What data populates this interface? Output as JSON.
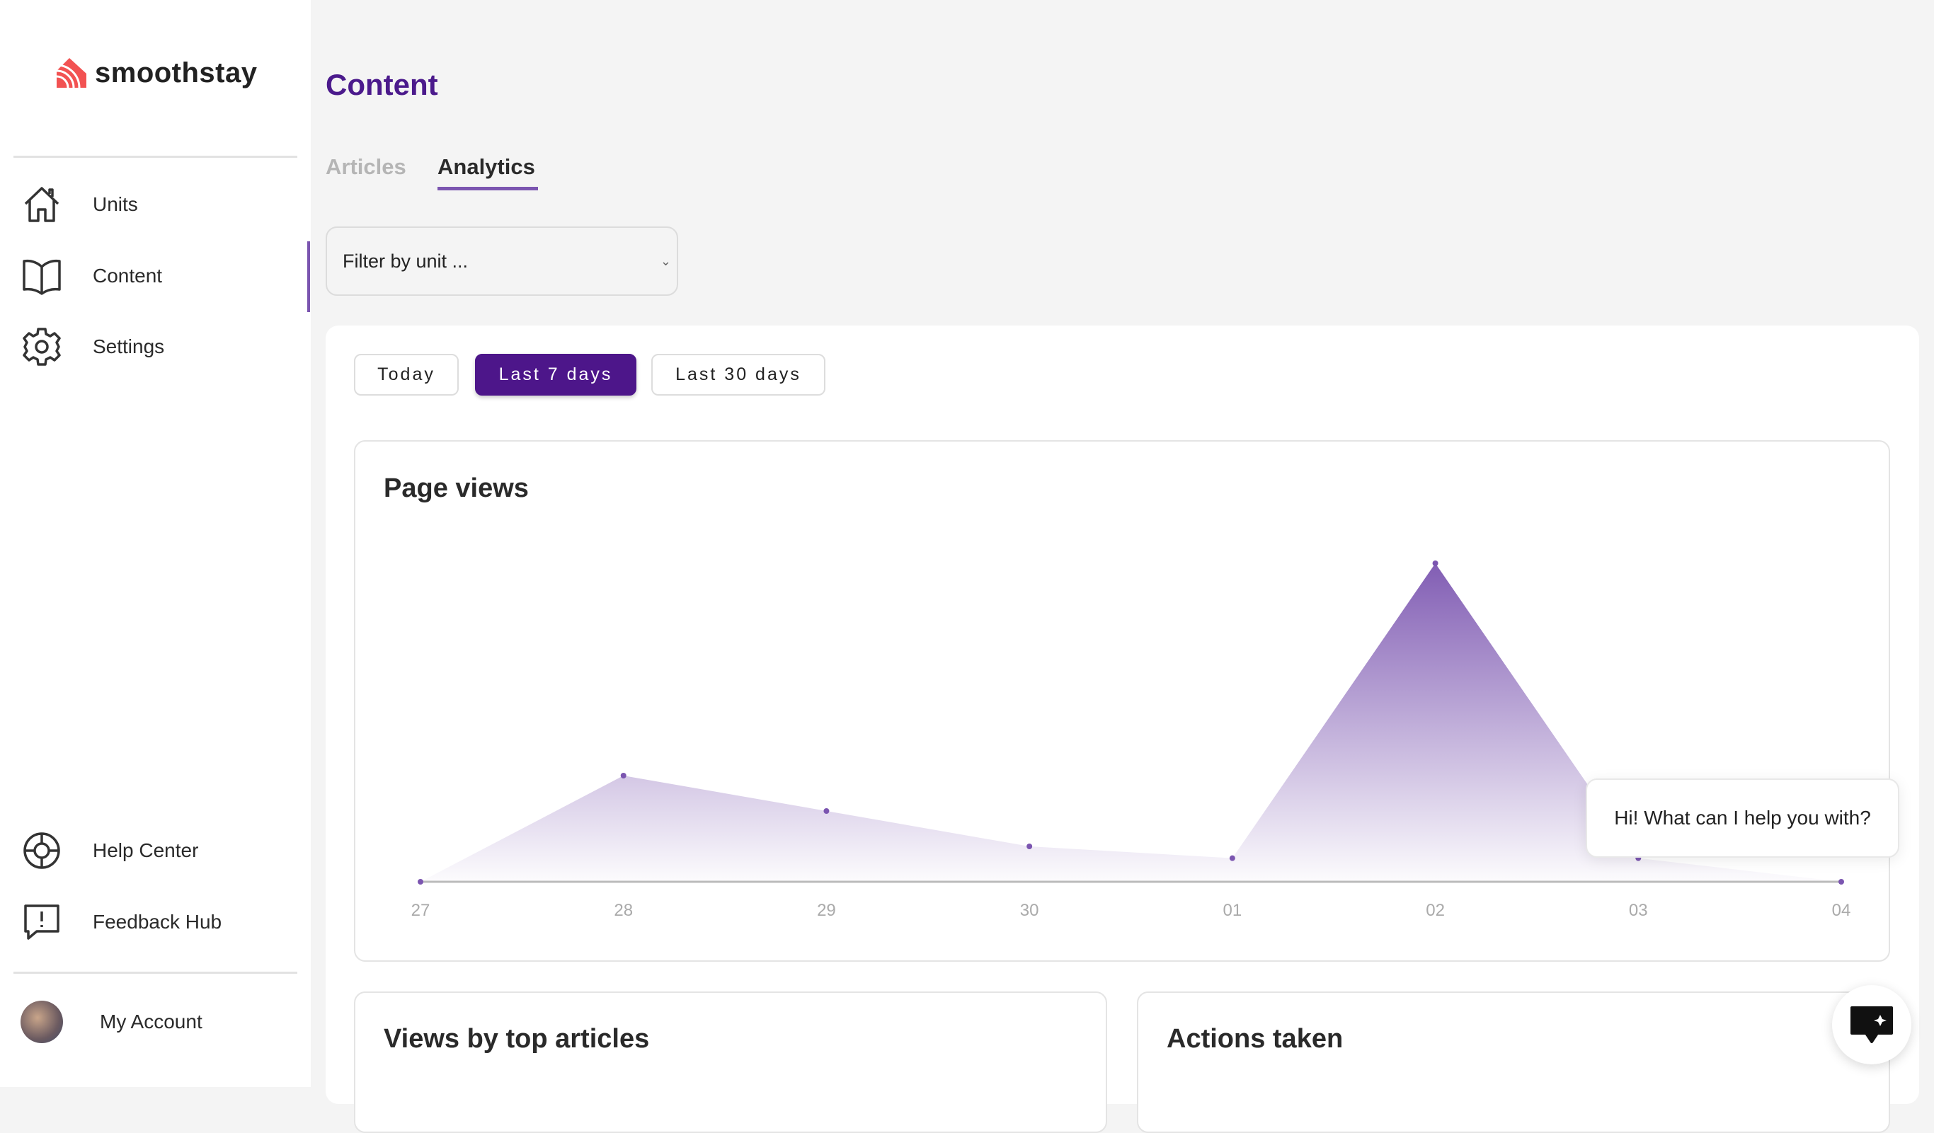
{
  "brand": {
    "name": "smoothstay",
    "accent": "#4d168a",
    "logo_color": "#f25252"
  },
  "sidebar": {
    "items": [
      {
        "label": "Units",
        "icon": "home-icon"
      },
      {
        "label": "Content",
        "icon": "book-icon"
      },
      {
        "label": "Settings",
        "icon": "gear-icon"
      }
    ],
    "bottom_items": [
      {
        "label": "Help Center",
        "icon": "lifebuoy-icon"
      },
      {
        "label": "Feedback Hub",
        "icon": "feedback-icon"
      }
    ],
    "account_label": "My Account"
  },
  "page": {
    "title": "Content",
    "tabs": [
      {
        "label": "Articles",
        "active": false
      },
      {
        "label": "Analytics",
        "active": true
      }
    ]
  },
  "filter": {
    "placeholder": "Filter by unit ..."
  },
  "ranges": [
    {
      "label": "Today",
      "active": false
    },
    {
      "label": "Last 7 days",
      "active": true
    },
    {
      "label": "Last 30 days",
      "active": false
    }
  ],
  "panels": {
    "page_views": "Page views",
    "top_articles": "Views by top articles",
    "actions": "Actions taken"
  },
  "chat": {
    "greeting": "Hi! What can I help you with?"
  },
  "chart_data": {
    "type": "area",
    "title": "Page views",
    "categories": [
      "27",
      "28",
      "29",
      "30",
      "01",
      "02",
      "03",
      "04"
    ],
    "visible_tick_labels": [
      "27",
      "28",
      "29",
      "30",
      "01",
      "02"
    ],
    "values": [
      0,
      9,
      6,
      3,
      2,
      27,
      2,
      0
    ],
    "ylim": [
      0,
      27
    ],
    "grid": false,
    "color": "#7b55b0"
  }
}
